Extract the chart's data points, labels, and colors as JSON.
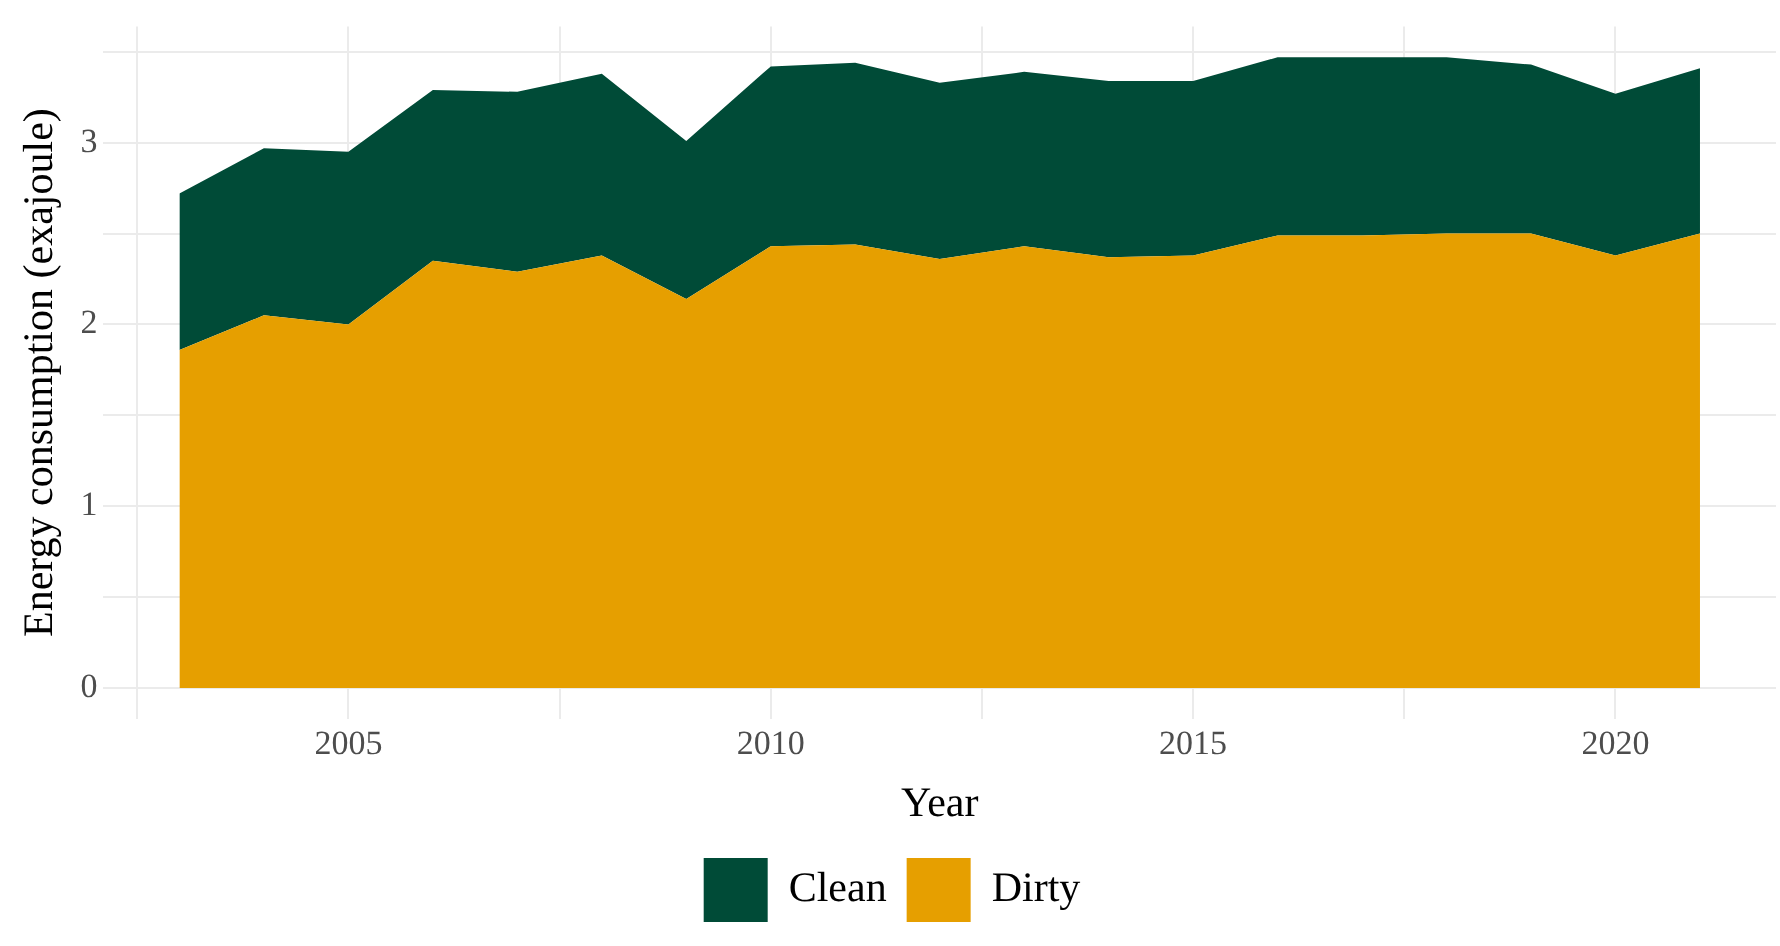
{
  "chart_data": {
    "type": "area",
    "xlabel": "Year",
    "ylabel": "Energy consumption (exajoule)",
    "x": [
      2003,
      2004,
      2005,
      2006,
      2007,
      2008,
      2009,
      2010,
      2011,
      2012,
      2013,
      2014,
      2015,
      2016,
      2017,
      2018,
      2019,
      2020,
      2021
    ],
    "stacked": true,
    "series": [
      {
        "name": "Dirty",
        "color": "#e69f00",
        "values": [
          1.86,
          2.05,
          2.0,
          2.35,
          2.29,
          2.38,
          2.14,
          2.43,
          2.44,
          2.36,
          2.43,
          2.37,
          2.38,
          2.49,
          2.49,
          2.5,
          2.5,
          2.38,
          2.5
        ]
      },
      {
        "name": "Clean",
        "color": "#004b37",
        "values": [
          0.86,
          0.92,
          0.95,
          0.94,
          0.99,
          1.0,
          0.87,
          0.99,
          1.0,
          0.97,
          0.96,
          0.97,
          0.96,
          0.98,
          0.98,
          0.97,
          0.93,
          0.89,
          0.91
        ]
      }
    ],
    "xlim": [
      2002.1,
      2021.9
    ],
    "xticks": [
      {
        "value": 2002.5,
        "label": null
      },
      2005,
      {
        "value": 2007.5,
        "label": null
      },
      2010,
      {
        "value": 2012.5,
        "label": null
      },
      2015,
      {
        "value": 2017.5,
        "label": null
      },
      2020
    ],
    "ylim": [
      -0.17,
      3.64
    ],
    "yticks": [
      0,
      {
        "value": 0.5,
        "label": null
      },
      1,
      {
        "value": 1.5,
        "label": null
      },
      2,
      {
        "value": 2.5,
        "label": null
      },
      3,
      {
        "value": 3.5,
        "label": null
      }
    ],
    "grid": true,
    "legend": "bottom"
  }
}
